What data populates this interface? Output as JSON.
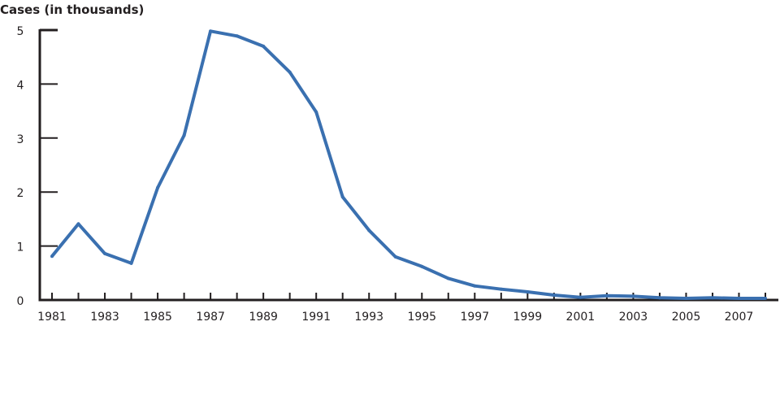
{
  "chart_data": {
    "type": "line",
    "title": "",
    "xlabel": "",
    "ylabel": "Cases (in thousands)",
    "ylim": [
      0,
      5
    ],
    "xlim": [
      1981,
      2008
    ],
    "yticks": [
      "0",
      "1",
      "2",
      "3",
      "4",
      "5"
    ],
    "xtick_labels": [
      "1981",
      "1983",
      "1985",
      "1987",
      "1989",
      "1991",
      "1993",
      "1995",
      "1997",
      "1999",
      "2001",
      "2003",
      "2005",
      "2007"
    ],
    "grid": false,
    "line_color": "#3a70b0",
    "x": [
      1981,
      1982,
      1983,
      1984,
      1985,
      1986,
      1987,
      1988,
      1989,
      1990,
      1991,
      1992,
      1993,
      1994,
      1995,
      1996,
      1997,
      1998,
      1999,
      2000,
      2001,
      2002,
      2003,
      2004,
      2005,
      2006,
      2007,
      2008
    ],
    "values": [
      0.81,
      1.41,
      0.86,
      0.68,
      2.08,
      3.05,
      4.98,
      4.89,
      4.7,
      4.22,
      3.48,
      1.91,
      1.29,
      0.8,
      0.62,
      0.4,
      0.26,
      0.2,
      0.15,
      0.09,
      0.05,
      0.08,
      0.07,
      0.04,
      0.03,
      0.04,
      0.03,
      0.03
    ]
  }
}
